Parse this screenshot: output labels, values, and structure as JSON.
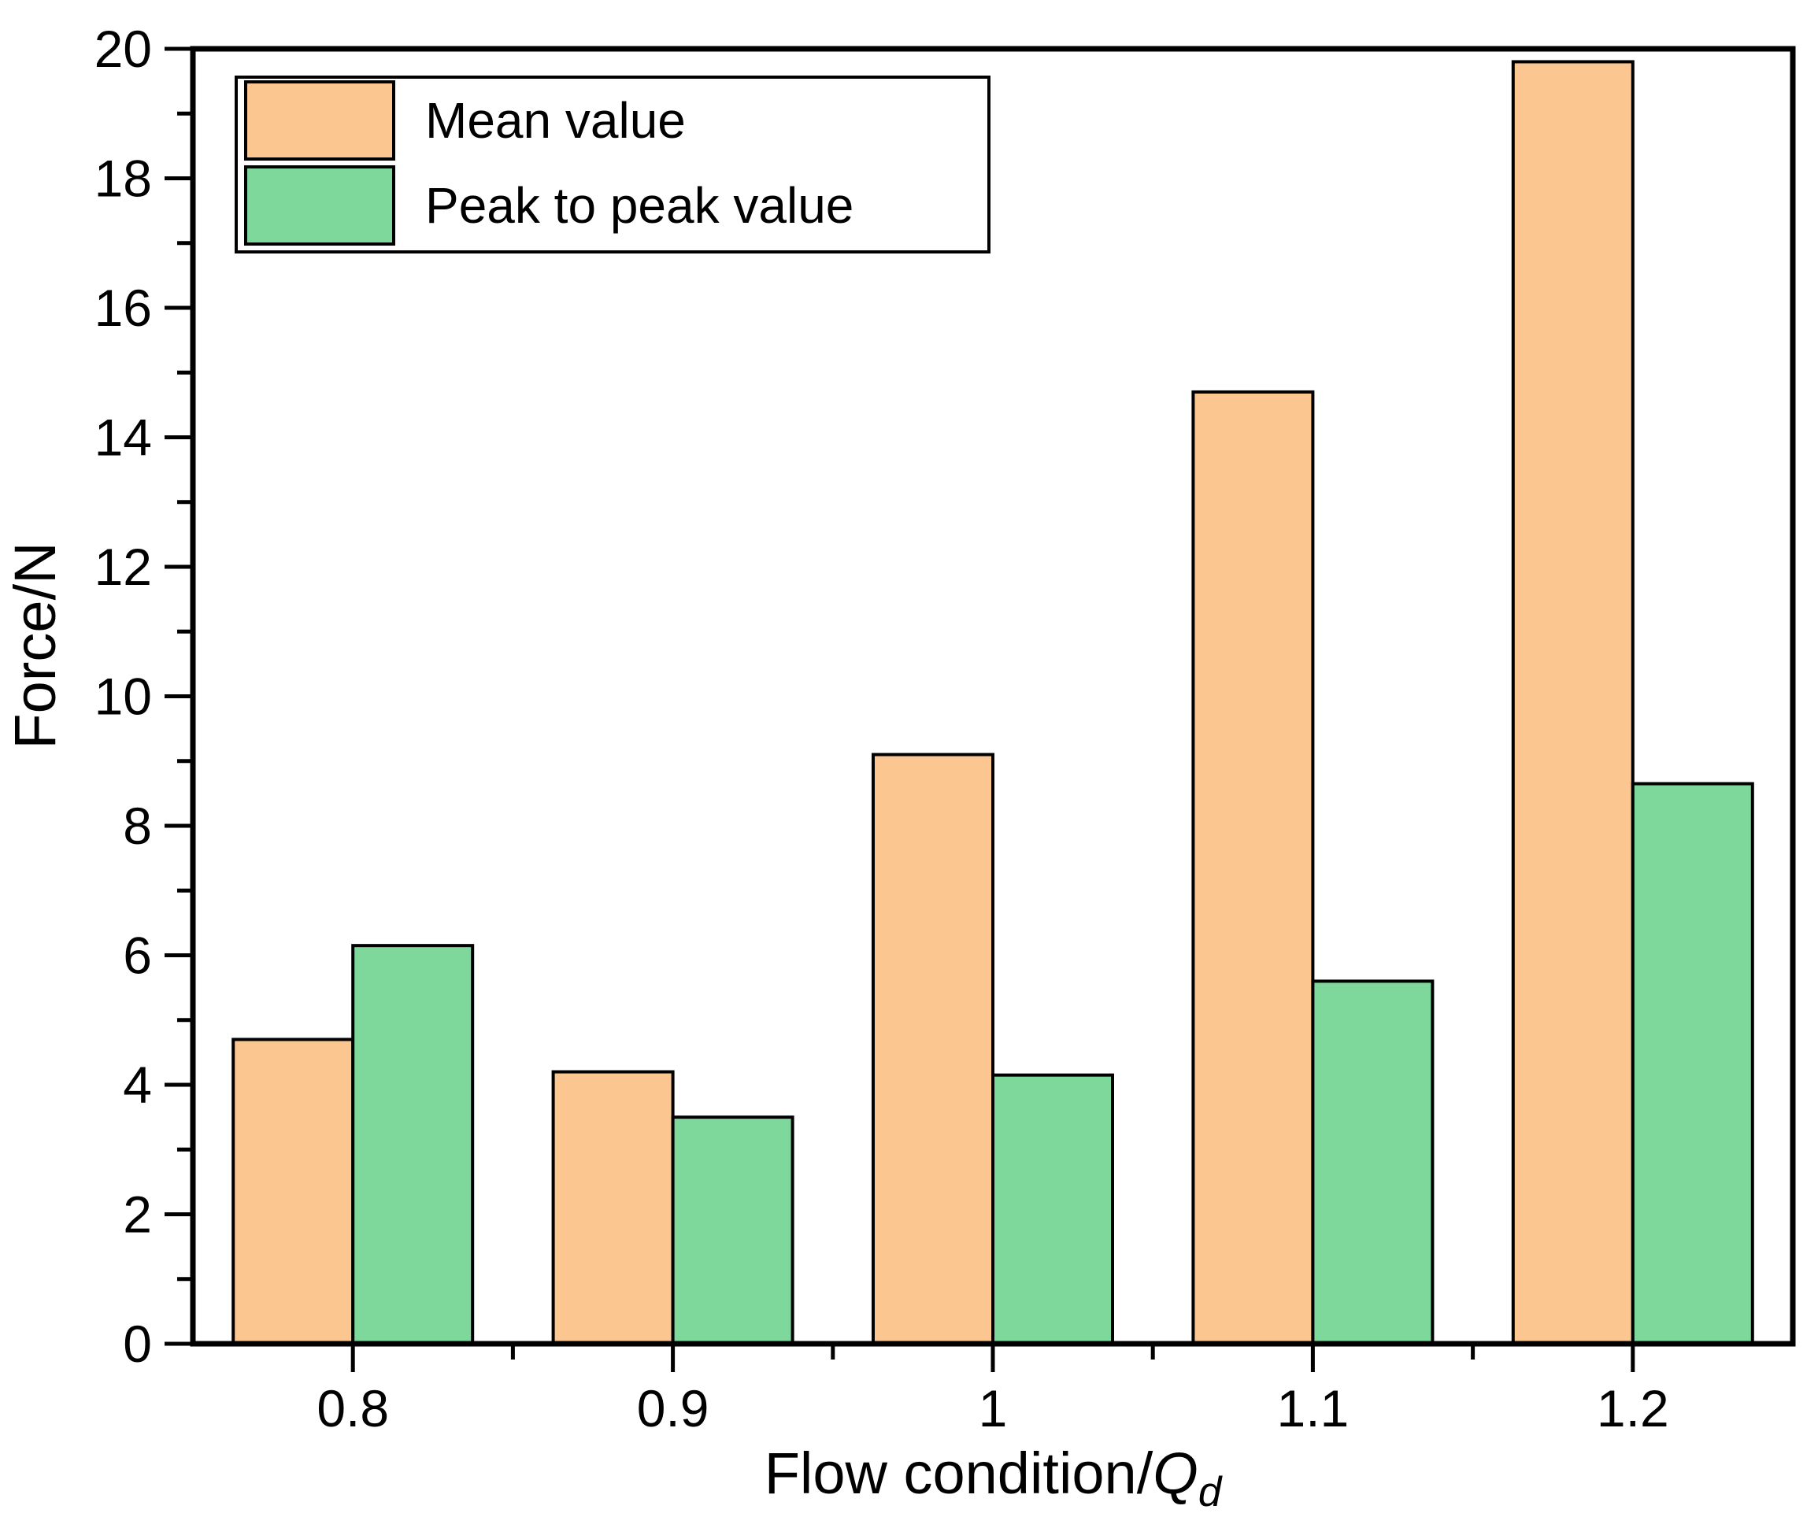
{
  "chart_data": {
    "type": "bar",
    "title": "",
    "categories": [
      "0.8",
      "0.9",
      "1",
      "1.1",
      "1.2"
    ],
    "series": [
      {
        "name": "Mean value",
        "color": "#FCC690",
        "values": [
          4.7,
          4.2,
          9.1,
          14.7,
          19.8
        ]
      },
      {
        "name": "Peak to peak value",
        "color": "#7ED79B",
        "values": [
          6.15,
          3.5,
          4.15,
          5.6,
          8.65
        ]
      }
    ],
    "xlabel": "Flow condition/Qd",
    "xlabel_main": "Flow condition/",
    "xlabel_var": "Q",
    "xlabel_sub": "d",
    "ylabel": "Force/N",
    "ylim": [
      0,
      20
    ],
    "y_major_step": 2,
    "y_minor_step": 1,
    "y_tick_labels": [
      "0",
      "2",
      "4",
      "6",
      "8",
      "10",
      "12",
      "14",
      "16",
      "18",
      "20"
    ],
    "grid": false,
    "legend_position": "top-left",
    "axis_color": "#000000",
    "bar_border_color": "#000000",
    "background_color": "#ffffff"
  }
}
